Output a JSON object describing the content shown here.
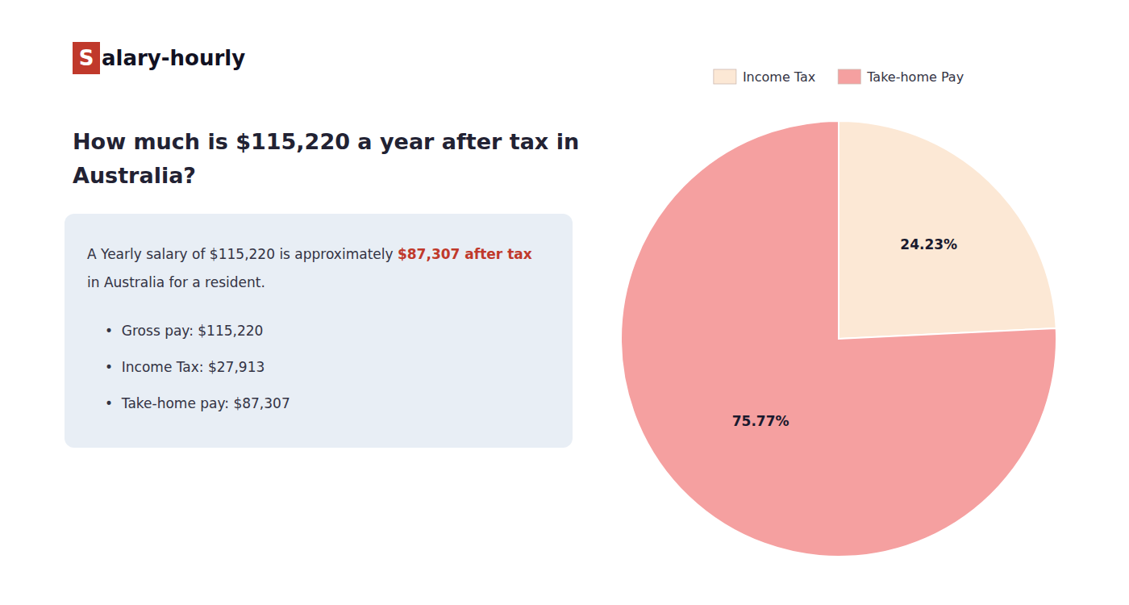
{
  "chart_data": {
    "type": "pie",
    "annotations": [
      {
        "text": "S",
        "color": "#c0392b"
      },
      {
        "text": "alary-hourly"
      },
      {
        "text": "How much is $115,220 a year after tax in"
      },
      {
        "text": "Australia?"
      },
      {
        "text": "A Yearly salary of $115,220 is approximately "
      },
      {
        "text": "$87,307 after tax",
        "color": "#c0392b"
      },
      {
        "text": "in Australia for a resident."
      },
      {
        "text": "•  Gross pay: $115,220"
      },
      {
        "text": "•  Income Tax: $27,913"
      },
      {
        "text": "•  Take-home pay: $87,307"
      }
    ],
    "categories": [
      "Income Tax",
      "Take-home Pay"
    ],
    "values": [
      24.23,
      75.77
    ],
    "value_labels": [
      "24.23%",
      "75.77%"
    ],
    "colors": [
      "#fce8d5",
      "#f5a0a0"
    ],
    "data_labels": true,
    "legend": "top"
  }
}
